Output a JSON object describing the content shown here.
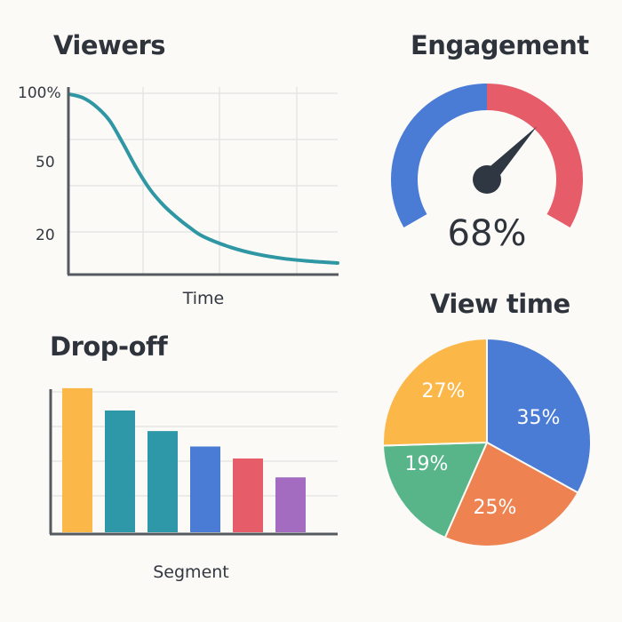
{
  "colors": {
    "line": "#2e97a3",
    "grid": "#e6e6e6",
    "axis": "#555a60",
    "gauge_blue": "#4a7bd5",
    "gauge_red": "#e65c69",
    "needle": "#2f3842"
  },
  "chart_data": [
    {
      "type": "line",
      "title": "Viewers",
      "xlabel": "Time",
      "ylabel": "",
      "y_ticks": [
        "100%",
        "50",
        "20"
      ],
      "grid": true,
      "series": [
        {
          "x": [
            0,
            0.05,
            0.1,
            0.15,
            0.2,
            0.25,
            0.3,
            0.35,
            0.4,
            0.45,
            0.5,
            0.6,
            0.7,
            0.8,
            0.9,
            1.0
          ],
          "y": [
            100,
            98,
            93,
            85,
            72,
            58,
            46,
            37,
            30,
            24,
            19,
            13,
            9,
            6.5,
            5,
            4
          ]
        }
      ]
    },
    {
      "type": "gauge",
      "title": "Engagement",
      "value": 68,
      "value_label": "68%",
      "range": [
        0,
        100
      ],
      "segments": [
        {
          "from": 0,
          "to": 50,
          "color": "#4a7bd5"
        },
        {
          "from": 50,
          "to": 100,
          "color": "#e65c69"
        }
      ]
    },
    {
      "type": "bar",
      "title": "Drop-off",
      "xlabel": "Segment",
      "ylabel": "",
      "ylim": [
        0,
        100
      ],
      "grid": true,
      "values": [
        84,
        71,
        59,
        50,
        43,
        32
      ],
      "colors": [
        "#fbb748",
        "#2e97a8",
        "#2e97a8",
        "#4a7bd5",
        "#e65c69",
        "#a46cc1"
      ]
    },
    {
      "type": "pie",
      "title": "View time",
      "slices": [
        {
          "label": "35%",
          "value": 35,
          "color": "#4a7bd5"
        },
        {
          "label": "25%",
          "value": 25,
          "color": "#ee8251"
        },
        {
          "label": "19%",
          "value": 19,
          "color": "#58b589"
        },
        {
          "label": "27%",
          "value": 27,
          "color": "#fbb748"
        }
      ]
    }
  ]
}
